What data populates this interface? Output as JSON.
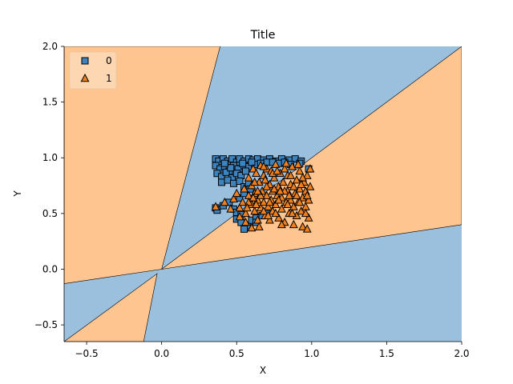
{
  "chart_data": {
    "type": "scatter",
    "title": "Title",
    "xlabel": "X",
    "ylabel": "Y",
    "xlim": [
      -0.65,
      2.0
    ],
    "ylim": [
      -0.65,
      2.0
    ],
    "xticks": [
      -0.5,
      0.0,
      0.5,
      1.0,
      1.5,
      2.0
    ],
    "xtick_labels": [
      "−0.5",
      "0.0",
      "0.5",
      "1.0",
      "1.5",
      "2.0"
    ],
    "yticks": [
      -0.5,
      0.0,
      0.5,
      1.0,
      1.5,
      2.0
    ],
    "ytick_labels": [
      "−0.5",
      "0.0",
      "0.5",
      "1.0",
      "1.5",
      "2.0"
    ],
    "grid": false,
    "legend_position": "top-left",
    "decision_regions": {
      "class_0_color": "#9bc0de",
      "class_1_color": "#fec590",
      "class_1_regions": [
        [
          [
            -0.65,
            -0.13
          ],
          [
            -0.65,
            2.0
          ],
          [
            0.39,
            2.0
          ],
          [
            0.0,
            0.0
          ]
        ],
        [
          [
            0.0,
            0.0
          ],
          [
            2.0,
            2.0
          ],
          [
            2.0,
            0.4
          ]
        ],
        [
          [
            -0.65,
            -0.65
          ],
          [
            -0.12,
            -0.65
          ],
          [
            -0.03,
            -0.04
          ]
        ]
      ]
    },
    "series": [
      {
        "name": "0",
        "marker": "square",
        "color": "#3b84c0",
        "points": [
          [
            0.36,
            0.99
          ],
          [
            0.38,
            0.97
          ],
          [
            0.41,
            0.99
          ],
          [
            0.44,
            0.97
          ],
          [
            0.47,
            0.99
          ],
          [
            0.5,
            0.96
          ],
          [
            0.52,
            0.99
          ],
          [
            0.55,
            0.97
          ],
          [
            0.58,
            0.99
          ],
          [
            0.61,
            0.98
          ],
          [
            0.64,
            0.99
          ],
          [
            0.68,
            0.98
          ],
          [
            0.72,
            0.99
          ],
          [
            0.76,
            0.97
          ],
          [
            0.8,
            0.99
          ],
          [
            0.85,
            0.98
          ],
          [
            0.89,
            0.99
          ],
          [
            0.93,
            0.97
          ],
          [
            0.36,
            0.93
          ],
          [
            0.39,
            0.9
          ],
          [
            0.42,
            0.92
          ],
          [
            0.45,
            0.88
          ],
          [
            0.48,
            0.93
          ],
          [
            0.51,
            0.9
          ],
          [
            0.55,
            0.93
          ],
          [
            0.58,
            0.92
          ],
          [
            0.62,
            0.94
          ],
          [
            0.37,
            0.86
          ],
          [
            0.4,
            0.83
          ],
          [
            0.43,
            0.87
          ],
          [
            0.47,
            0.82
          ],
          [
            0.5,
            0.86
          ],
          [
            0.53,
            0.84
          ],
          [
            0.56,
            0.88
          ],
          [
            0.4,
            0.78
          ],
          [
            0.44,
            0.8
          ],
          [
            0.48,
            0.77
          ],
          [
            0.52,
            0.79
          ],
          [
            0.55,
            0.74
          ],
          [
            0.58,
            0.77
          ],
          [
            0.36,
            0.55
          ],
          [
            0.37,
            0.53
          ],
          [
            0.41,
            0.57
          ],
          [
            0.45,
            0.6
          ],
          [
            0.48,
            0.54
          ],
          [
            0.5,
            0.51
          ],
          [
            0.53,
            0.49
          ],
          [
            0.5,
            0.45
          ],
          [
            0.53,
            0.42
          ],
          [
            0.57,
            0.39
          ],
          [
            0.55,
            0.36
          ],
          [
            0.6,
            0.44
          ],
          [
            0.63,
            0.46
          ],
          [
            0.67,
            0.48
          ],
          [
            0.63,
            0.42
          ],
          [
            0.7,
            0.5
          ],
          [
            0.52,
            0.64
          ],
          [
            0.55,
            0.68
          ],
          [
            0.59,
            0.72
          ],
          [
            0.7,
            0.96
          ],
          [
            0.78,
            0.95
          ],
          [
            0.86,
            0.94
          ],
          [
            0.92,
            0.95
          ],
          [
            0.6,
            0.96
          ],
          [
            0.66,
            0.95
          ],
          [
            0.74,
            0.96
          ],
          [
            0.82,
            0.96
          ],
          [
            0.46,
            0.91
          ],
          [
            0.42,
            0.95
          ],
          [
            0.54,
            0.95
          ],
          [
            0.98,
            0.9
          ]
        ]
      },
      {
        "name": "1",
        "marker": "triangle",
        "color": "#f07f1e",
        "points": [
          [
            0.36,
            0.56
          ],
          [
            0.42,
            0.6
          ],
          [
            0.46,
            0.54
          ],
          [
            0.48,
            0.63
          ],
          [
            0.5,
            0.68
          ],
          [
            0.52,
            0.55
          ],
          [
            0.54,
            0.6
          ],
          [
            0.55,
            0.72
          ],
          [
            0.56,
            0.5
          ],
          [
            0.58,
            0.66
          ],
          [
            0.58,
            0.82
          ],
          [
            0.6,
            0.58
          ],
          [
            0.6,
            0.75
          ],
          [
            0.61,
            0.9
          ],
          [
            0.62,
            0.52
          ],
          [
            0.62,
            0.68
          ],
          [
            0.63,
            0.86
          ],
          [
            0.64,
            0.44
          ],
          [
            0.64,
            0.62
          ],
          [
            0.65,
            0.78
          ],
          [
            0.66,
            0.55
          ],
          [
            0.66,
            0.93
          ],
          [
            0.67,
            0.7
          ],
          [
            0.68,
            0.6
          ],
          [
            0.68,
            0.84
          ],
          [
            0.69,
            0.48
          ],
          [
            0.7,
            0.66
          ],
          [
            0.7,
            0.9
          ],
          [
            0.71,
            0.56
          ],
          [
            0.72,
            0.76
          ],
          [
            0.72,
            0.44
          ],
          [
            0.73,
            0.62
          ],
          [
            0.73,
            0.88
          ],
          [
            0.74,
            0.52
          ],
          [
            0.74,
            0.7
          ],
          [
            0.75,
            0.82
          ],
          [
            0.76,
            0.58
          ],
          [
            0.76,
            0.94
          ],
          [
            0.77,
            0.66
          ],
          [
            0.78,
            0.46
          ],
          [
            0.78,
            0.74
          ],
          [
            0.79,
            0.86
          ],
          [
            0.8,
            0.54
          ],
          [
            0.8,
            0.64
          ],
          [
            0.81,
            0.78
          ],
          [
            0.82,
            0.9
          ],
          [
            0.82,
            0.42
          ],
          [
            0.83,
            0.6
          ],
          [
            0.84,
            0.7
          ],
          [
            0.84,
            0.84
          ],
          [
            0.85,
            0.5
          ],
          [
            0.86,
            0.62
          ],
          [
            0.86,
            0.76
          ],
          [
            0.87,
            0.92
          ],
          [
            0.88,
            0.56
          ],
          [
            0.88,
            0.4
          ],
          [
            0.89,
            0.68
          ],
          [
            0.9,
            0.8
          ],
          [
            0.9,
            0.48
          ],
          [
            0.91,
            0.6
          ],
          [
            0.92,
            0.72
          ],
          [
            0.92,
            0.88
          ],
          [
            0.93,
            0.52
          ],
          [
            0.94,
            0.64
          ],
          [
            0.94,
            0.38
          ],
          [
            0.95,
            0.78
          ],
          [
            0.96,
            0.56
          ],
          [
            0.96,
            0.7
          ],
          [
            0.97,
            0.84
          ],
          [
            0.98,
            0.46
          ],
          [
            0.98,
            0.62
          ],
          [
            0.99,
            0.74
          ],
          [
            0.99,
            0.9
          ],
          [
            0.97,
            0.36
          ],
          [
            0.6,
            0.37
          ],
          [
            0.56,
            0.42
          ],
          [
            0.52,
            0.47
          ],
          [
            0.65,
            0.38
          ],
          [
            0.58,
            0.6
          ],
          [
            0.62,
            0.78
          ],
          [
            0.66,
            0.66
          ],
          [
            0.7,
            0.74
          ],
          [
            0.74,
            0.86
          ],
          [
            0.78,
            0.62
          ],
          [
            0.82,
            0.7
          ],
          [
            0.86,
            0.84
          ],
          [
            0.9,
            0.66
          ],
          [
            0.94,
            0.82
          ],
          [
            0.68,
            0.52
          ],
          [
            0.72,
            0.6
          ],
          [
            0.76,
            0.5
          ],
          [
            0.8,
            0.4
          ],
          [
            0.84,
            0.58
          ],
          [
            0.88,
            0.74
          ],
          [
            0.92,
            0.6
          ],
          [
            0.96,
            0.5
          ],
          [
            0.64,
            0.7
          ],
          [
            0.68,
            0.92
          ],
          [
            0.75,
            0.72
          ],
          [
            0.83,
            0.95
          ],
          [
            0.91,
            0.94
          ],
          [
            0.57,
            0.55
          ],
          [
            0.61,
            0.64
          ],
          [
            0.69,
            0.8
          ],
          [
            0.77,
            0.88
          ],
          [
            0.85,
            0.66
          ],
          [
            0.93,
            0.76
          ],
          [
            0.97,
            0.66
          ],
          [
            0.63,
            0.58
          ],
          [
            0.71,
            0.48
          ],
          [
            0.79,
            0.7
          ],
          [
            0.87,
            0.5
          ]
        ]
      }
    ]
  }
}
